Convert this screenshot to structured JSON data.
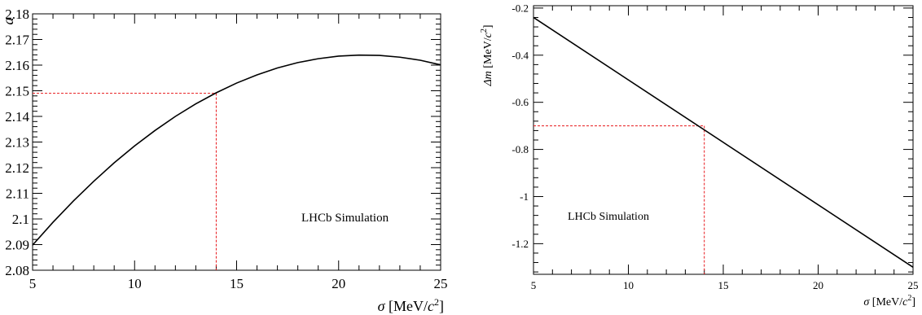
{
  "chart_data": [
    {
      "type": "line",
      "title": "",
      "xlabel_symbol": "σ",
      "xlabel_unit": "[MeV/",
      "xlabel_c": "c",
      "xlabel_exp": "2",
      "xlabel_close": "]",
      "ylabel": "a",
      "xlim": [
        5,
        25
      ],
      "ylim": [
        2.08,
        2.18
      ],
      "x_ticks": [
        "5",
        "10",
        "15",
        "20",
        "25"
      ],
      "x_tick_values": [
        5,
        10,
        15,
        20,
        25
      ],
      "y_ticks": [
        "2.08",
        "2.09",
        "2.1",
        "2.11",
        "2.12",
        "2.13",
        "2.14",
        "2.15",
        "2.16",
        "2.17",
        "2.18"
      ],
      "y_tick_values": [
        2.08,
        2.09,
        2.1,
        2.11,
        2.12,
        2.13,
        2.14,
        2.15,
        2.16,
        2.17,
        2.18
      ],
      "series": [
        {
          "x": [
            5,
            6,
            7,
            8,
            9,
            10,
            11,
            12,
            13,
            14,
            15,
            16,
            17,
            18,
            19,
            20,
            21,
            22,
            23,
            24,
            25
          ],
          "y": [
            2.0898,
            2.0987,
            2.107,
            2.1147,
            2.1219,
            2.1285,
            2.1345,
            2.14,
            2.1449,
            2.1492,
            2.153,
            2.1562,
            2.1589,
            2.161,
            2.1625,
            2.1635,
            2.1639,
            2.1638,
            2.1631,
            2.1619,
            2.1601
          ],
          "color": "#000000"
        }
      ],
      "reference": {
        "x": 14,
        "y": 2.149,
        "color": "#e8171b"
      },
      "annotation": "LHCb Simulation",
      "grid": false
    },
    {
      "type": "line",
      "title": "",
      "xlabel_symbol": "σ",
      "xlabel_unit": "[MeV/",
      "xlabel_c": "c",
      "xlabel_exp": "2",
      "xlabel_close": "]",
      "ylabel_symbol": "Δm",
      "ylabel_unit": "[MeV/",
      "ylabel_c": "c",
      "ylabel_exp": "2",
      "ylabel_close": "]",
      "xlim": [
        5,
        25
      ],
      "ylim": [
        -1.33,
        -0.19
      ],
      "x_ticks": [
        "5",
        "10",
        "15",
        "20",
        "25"
      ],
      "x_tick_values": [
        5,
        10,
        15,
        20,
        25
      ],
      "y_ticks": [
        "-0.2",
        "-0.4",
        "-0.6",
        "-0.8",
        "-1",
        "-1.2"
      ],
      "y_tick_values": [
        -0.2,
        -0.4,
        -0.6,
        -0.8,
        -1.0,
        -1.2
      ],
      "series": [
        {
          "x": [
            5,
            25
          ],
          "y": [
            -0.24,
            -1.3
          ],
          "color": "#000000"
        }
      ],
      "reference": {
        "x": 14,
        "y": -0.7,
        "color": "#e8171b"
      },
      "annotation": "LHCb Simulation",
      "grid": false
    }
  ]
}
